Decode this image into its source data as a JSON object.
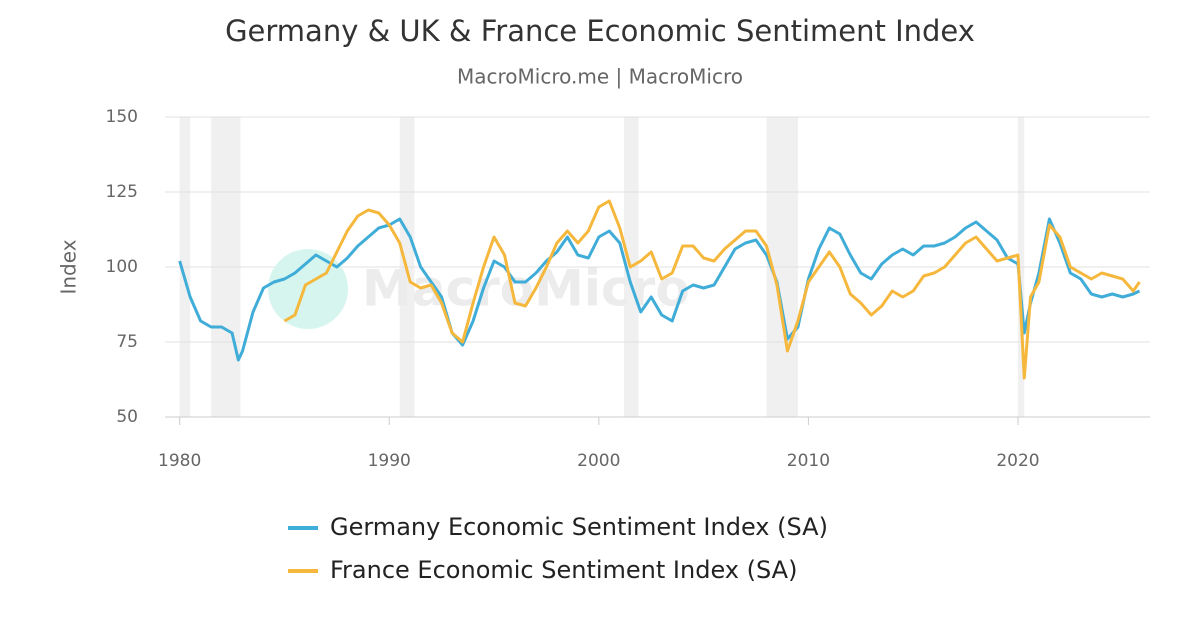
{
  "chart_data": {
    "type": "line",
    "title": "Germany & UK & France Economic Sentiment Index",
    "subtitle": "MacroMicro.me | MacroMicro",
    "watermark": "MacroMicro",
    "ylabel": "Index",
    "xlim": [
      1979.3,
      2026.3
    ],
    "ylim": [
      50,
      150
    ],
    "xticks": [
      1980,
      1990,
      2000,
      2010,
      2020
    ],
    "yticks": [
      50,
      75,
      100,
      125,
      150
    ],
    "grid": true,
    "legend": "bottom",
    "shaded_color": "#f0f0f0",
    "shaded_periods": [
      [
        1980.0,
        1980.5
      ],
      [
        1981.5,
        1982.9
      ],
      [
        1990.5,
        1991.2
      ],
      [
        2001.2,
        2001.9
      ],
      [
        2008.0,
        2009.5
      ],
      [
        2020.0,
        2020.3
      ]
    ],
    "series": [
      {
        "name": "Germany Economic Sentiment Index (SA)",
        "color": "#3fadd8",
        "x": [
          1980.0,
          1980.5,
          1981.0,
          1981.5,
          1982.0,
          1982.5,
          1982.8,
          1983.0,
          1983.5,
          1984.0,
          1984.5,
          1985.0,
          1985.5,
          1986.0,
          1986.5,
          1987.0,
          1987.5,
          1988.0,
          1988.5,
          1989.0,
          1989.5,
          1990.0,
          1990.5,
          1991.0,
          1991.5,
          1992.0,
          1992.5,
          1993.0,
          1993.5,
          1994.0,
          1994.5,
          1995.0,
          1995.5,
          1996.0,
          1996.5,
          1997.0,
          1997.5,
          1998.0,
          1998.5,
          1999.0,
          1999.5,
          2000.0,
          2000.5,
          2001.0,
          2001.5,
          2002.0,
          2002.5,
          2003.0,
          2003.5,
          2004.0,
          2004.5,
          2005.0,
          2005.5,
          2006.0,
          2006.5,
          2007.0,
          2007.5,
          2008.0,
          2008.5,
          2009.0,
          2009.5,
          2010.0,
          2010.5,
          2011.0,
          2011.5,
          2012.0,
          2012.5,
          2013.0,
          2013.5,
          2014.0,
          2014.5,
          2015.0,
          2015.5,
          2016.0,
          2016.5,
          2017.0,
          2017.5,
          2018.0,
          2018.5,
          2019.0,
          2019.5,
          2020.0,
          2020.3,
          2020.6,
          2021.0,
          2021.5,
          2022.0,
          2022.5,
          2023.0,
          2023.5,
          2024.0,
          2024.5,
          2025.0,
          2025.5,
          2025.8
        ],
        "values": [
          102,
          90,
          82,
          80,
          80,
          78,
          69,
          72,
          85,
          93,
          95,
          96,
          98,
          101,
          104,
          102,
          100,
          103,
          107,
          110,
          113,
          114,
          116,
          110,
          100,
          95,
          90,
          78,
          74,
          82,
          93,
          102,
          100,
          95,
          95,
          98,
          102,
          105,
          110,
          104,
          103,
          110,
          112,
          108,
          95,
          85,
          90,
          84,
          82,
          92,
          94,
          93,
          94,
          100,
          106,
          108,
          109,
          104,
          95,
          76,
          80,
          96,
          106,
          113,
          111,
          104,
          98,
          96,
          101,
          104,
          106,
          104,
          107,
          107,
          108,
          110,
          113,
          115,
          112,
          109,
          103,
          101,
          78,
          88,
          98,
          116,
          108,
          98,
          96,
          91,
          90,
          91,
          90,
          91,
          92
        ]
      },
      {
        "name": "France Economic Sentiment Index (SA)",
        "color": "#f5b83d",
        "x": [
          1985.0,
          1985.5,
          1986.0,
          1986.5,
          1987.0,
          1987.5,
          1988.0,
          1988.5,
          1989.0,
          1989.5,
          1990.0,
          1990.5,
          1991.0,
          1991.5,
          1992.0,
          1992.5,
          1993.0,
          1993.5,
          1994.0,
          1994.5,
          1995.0,
          1995.5,
          1996.0,
          1996.5,
          1997.0,
          1997.5,
          1998.0,
          1998.5,
          1999.0,
          1999.5,
          2000.0,
          2000.5,
          2001.0,
          2001.5,
          2002.0,
          2002.5,
          2003.0,
          2003.5,
          2004.0,
          2004.5,
          2005.0,
          2005.5,
          2006.0,
          2006.5,
          2007.0,
          2007.5,
          2008.0,
          2008.5,
          2009.0,
          2009.5,
          2010.0,
          2010.5,
          2011.0,
          2011.5,
          2012.0,
          2012.5,
          2013.0,
          2013.5,
          2014.0,
          2014.5,
          2015.0,
          2015.5,
          2016.0,
          2016.5,
          2017.0,
          2017.5,
          2018.0,
          2018.5,
          2019.0,
          2019.5,
          2020.0,
          2020.3,
          2020.6,
          2021.0,
          2021.5,
          2022.0,
          2022.5,
          2023.0,
          2023.5,
          2024.0,
          2024.5,
          2025.0,
          2025.5,
          2025.8
        ],
        "values": [
          82,
          84,
          94,
          96,
          98,
          105,
          112,
          117,
          119,
          118,
          114,
          108,
          95,
          93,
          94,
          88,
          78,
          75,
          88,
          100,
          110,
          104,
          88,
          87,
          93,
          100,
          108,
          112,
          108,
          112,
          120,
          122,
          113,
          100,
          102,
          105,
          96,
          98,
          107,
          107,
          103,
          102,
          106,
          109,
          112,
          112,
          107,
          94,
          72,
          82,
          95,
          100,
          105,
          100,
          91,
          88,
          84,
          87,
          92,
          90,
          92,
          97,
          98,
          100,
          104,
          108,
          110,
          106,
          102,
          103,
          104,
          63,
          90,
          95,
          114,
          110,
          100,
          98,
          96,
          98,
          97,
          96,
          92,
          95
        ]
      }
    ]
  }
}
